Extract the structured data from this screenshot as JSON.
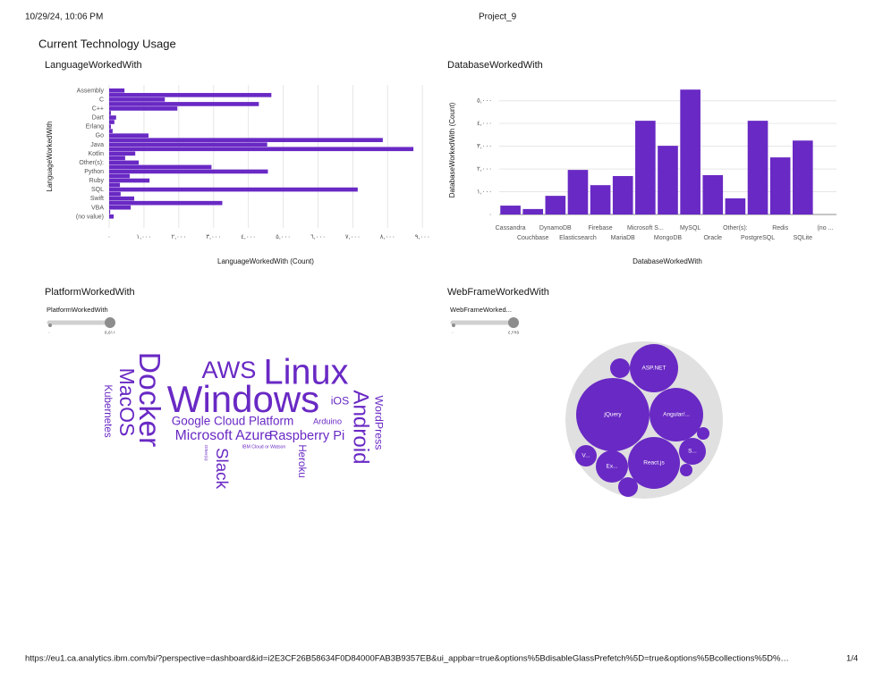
{
  "header": {
    "datetime": "10/29/24, 10:06 PM",
    "title": "Project_9"
  },
  "dashboard_title": "Current Technology Usage",
  "footer": {
    "url": "https://eu1.ca.analytics.ibm.com/bi/?perspective=dashboard&id=i2E3CF26B58634F0D84000FAB3B9357EB&ui_appbar=true&options%5BdisableGlassPrefetch%5D=true&options%5Bcollections%5D%…",
    "page": "1/4"
  },
  "chart_data": [
    {
      "type": "hbar",
      "title": "LanguageWorkedWith",
      "x_label": "LanguageWorkedWith (Count)",
      "y_label": "LanguageWorkedWith",
      "color": "#6929c4",
      "grid": true,
      "categories": [
        "Assembly",
        null,
        "C",
        null,
        "C++",
        null,
        "Dart",
        null,
        "Erlang",
        null,
        "Go",
        null,
        "Java",
        null,
        "Kotlin",
        null,
        "Other(s):",
        null,
        "Python",
        null,
        "Ruby",
        null,
        "SQL",
        null,
        "Swift",
        null,
        "VBA",
        null,
        "(no value)"
      ],
      "values": [
        440,
        4660,
        1600,
        4300,
        1960,
        50,
        200,
        150,
        50,
        100,
        1130,
        7860,
        4540,
        8740,
        750,
        460,
        850,
        2940,
        4560,
        590,
        1160,
        310,
        7140,
        330,
        720,
        3250,
        620,
        30,
        130
      ],
      "xlim": [
        0,
        9200
      ],
      "xticks": [
        {
          "value": 0,
          "label": "٠"
        },
        {
          "value": 1000,
          "label": "١,٠٠٠"
        },
        {
          "value": 2000,
          "label": "٢,٠٠٠"
        },
        {
          "value": 3000,
          "label": "٣,٠٠٠"
        },
        {
          "value": 4000,
          "label": "٤,٠٠٠"
        },
        {
          "value": 5000,
          "label": "٥,٠٠٠"
        },
        {
          "value": 6000,
          "label": "٦,٠٠٠"
        },
        {
          "value": 7000,
          "label": "٧,٠٠٠"
        },
        {
          "value": 8000,
          "label": "٨,٠٠٠"
        },
        {
          "value": 9000,
          "label": "٩,٠٠٠"
        }
      ]
    },
    {
      "type": "bar",
      "title": "DatabaseWorkedWith",
      "x_label": "DatabaseWorkedWith",
      "y_label": "DatabaseWorkedWith (Count)",
      "color": "#6929c4",
      "grid": true,
      "categories": [
        "Cassandra",
        "Couchbase",
        "DynamoDB",
        "Elasticsearch",
        "Firebase",
        "MariaDB",
        "Microsoft S...",
        "MongoDB",
        "MySQL",
        "Oracle",
        "Other(s):",
        "PostgreSQL",
        "Redis",
        "SQLite",
        "(no ..."
      ],
      "values": [
        390,
        240,
        820,
        1960,
        1290,
        1690,
        4120,
        3020,
        5490,
        1730,
        710,
        4120,
        2510,
        3250,
        0
      ],
      "ylim": [
        0,
        5500
      ],
      "yticks": [
        {
          "value": 0,
          "label": "٠"
        },
        {
          "value": 1000,
          "label": "١,٠٠٠"
        },
        {
          "value": 2000,
          "label": "٢,٠٠٠"
        },
        {
          "value": 3000,
          "label": "٣,٠٠٠"
        },
        {
          "value": 4000,
          "label": "٤,٠٠٠"
        },
        {
          "value": 5000,
          "label": "٥,٠٠٠"
        }
      ]
    },
    {
      "type": "wordcloud",
      "title": "PlatformWorkedWith",
      "color": "#6929c4",
      "slider": {
        "title": "PlatformWorkedWith",
        "min": {
          "value": 0,
          "label": "٠"
        },
        "max": {
          "value": 5511,
          "label": "٥,٥١١"
        }
      },
      "categories": [
        "Docker",
        "MacOS",
        "Kubernetes",
        "AWS",
        "Linux",
        "Windows",
        "iOS",
        "Android",
        "WordPress",
        "Google Cloud Platform",
        "Arduino",
        "Microsoft Azure",
        "Raspberry Pi",
        "Slack",
        "Heroku",
        "IBM Cloud or Watson",
        "Other(s):"
      ],
      "values": [
        3900,
        2500,
        1000,
        3050,
        4700,
        5000,
        1100,
        2650,
        1100,
        1250,
        700,
        1550,
        1400,
        1950,
        1000,
        150,
        100
      ]
    },
    {
      "type": "bubble_pack",
      "title": "WebFrameWorkedWith",
      "color": "#6929c4",
      "slider": {
        "title": "WebFrameWorked...",
        "min": {
          "value": 0,
          "label": "٠"
        },
        "max": {
          "value": 4275,
          "label": "٤,٢٧٥"
        }
      },
      "categories": [
        "jQuery",
        "ASP.NET",
        "Angular/...",
        "React.js",
        "V...",
        "Ex...",
        "S...",
        null,
        null,
        null,
        null
      ],
      "values": [
        4275,
        1854,
        2289,
        2139,
        366,
        824,
        572,
        308,
        308,
        125,
        125
      ]
    }
  ]
}
